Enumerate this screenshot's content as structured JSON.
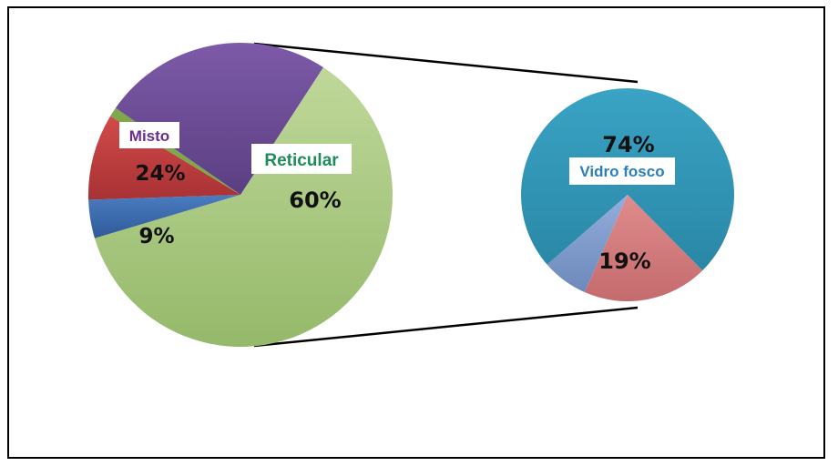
{
  "chart_data": {
    "type": "pie",
    "subtype": "pie-of-pie",
    "main_pie": {
      "slices": [
        {
          "label": "Reticular",
          "value": 60,
          "value_label": "60%",
          "color": "#a4c47a"
        },
        {
          "label": "",
          "value": 4,
          "value_label": "",
          "color": "#3b6cb0"
        },
        {
          "label": "",
          "value": 9,
          "value_label": "9%",
          "color": "#c0393b"
        },
        {
          "label": "",
          "value": 1,
          "value_label": "",
          "color": "#7fa84a"
        },
        {
          "label": "Misto",
          "value": 24,
          "value_label": "24%",
          "color": "#6b4c95"
        }
      ]
    },
    "secondary_pie": {
      "slices": [
        {
          "label": "Vidro fosco",
          "value": 74,
          "value_label": "74%",
          "color": "#3097b6"
        },
        {
          "label": "",
          "value": 19,
          "value_label": "19%",
          "color": "#d37b7c"
        },
        {
          "label": "",
          "value": 7,
          "value_label": "",
          "color": "#7e99c8"
        }
      ]
    },
    "label_colors": {
      "Reticular": "#1e8c5a",
      "Misto": "#6b2c91",
      "Vidro fosco": "#2a7fb8"
    }
  }
}
